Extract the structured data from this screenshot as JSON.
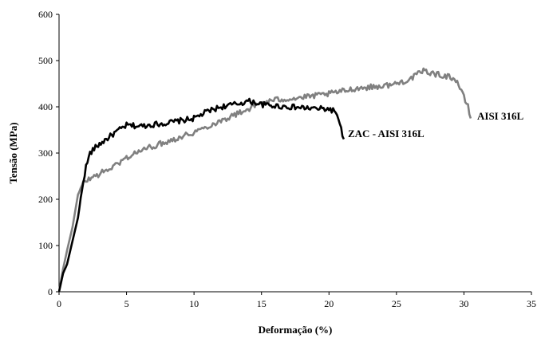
{
  "chart_data": {
    "type": "line",
    "title": "",
    "xlabel": "Deformação (%)",
    "ylabel": "Tensão (MPa)",
    "xlim": [
      0,
      35
    ],
    "ylim": [
      0,
      600
    ],
    "xticks": [
      "0",
      "5",
      "10",
      "15",
      "20",
      "25",
      "30",
      "35"
    ],
    "yticks": [
      "0",
      "100",
      "200",
      "300",
      "400",
      "500",
      "600"
    ],
    "grid": false,
    "legend": "none",
    "series": [
      {
        "name": "ZAC - AISI 316L",
        "color": "#000000",
        "x": [
          0,
          0.3,
          0.6,
          1.0,
          1.4,
          1.8,
          2.0,
          2.3,
          2.8,
          3.5,
          4.2,
          5.0,
          6.0,
          7.0,
          8.0,
          9.0,
          10.0,
          11.0,
          12.0,
          13.0,
          14.0,
          14.5,
          15.0,
          16.0,
          17.0,
          18.0,
          19.0,
          20.0,
          20.5,
          20.8,
          21.1
        ],
        "y": [
          0,
          40,
          60,
          110,
          160,
          240,
          270,
          300,
          315,
          330,
          345,
          360,
          358,
          362,
          365,
          370,
          375,
          390,
          400,
          405,
          412,
          410,
          405,
          402,
          400,
          398,
          396,
          395,
          390,
          360,
          330
        ]
      },
      {
        "name": "AISI 316L",
        "color": "#808080",
        "x": [
          0,
          0.3,
          0.6,
          1.0,
          1.4,
          1.8,
          2.0,
          2.5,
          3.0,
          4.0,
          5.0,
          6.0,
          8.0,
          10.0,
          12.0,
          14.0,
          15.0,
          16.0,
          18.0,
          20.0,
          22.0,
          24.0,
          25.0,
          26.0,
          27.0,
          28.0,
          29.0,
          29.5,
          30.0,
          30.3,
          30.5
        ],
        "y": [
          0,
          50,
          90,
          140,
          210,
          235,
          240,
          248,
          255,
          270,
          290,
          305,
          325,
          345,
          370,
          395,
          408,
          415,
          420,
          428,
          440,
          445,
          450,
          460,
          478,
          470,
          465,
          455,
          420,
          400,
          375
        ]
      }
    ],
    "annotations": [
      "ZAC - AISI 316L",
      "AISI 316L"
    ]
  }
}
